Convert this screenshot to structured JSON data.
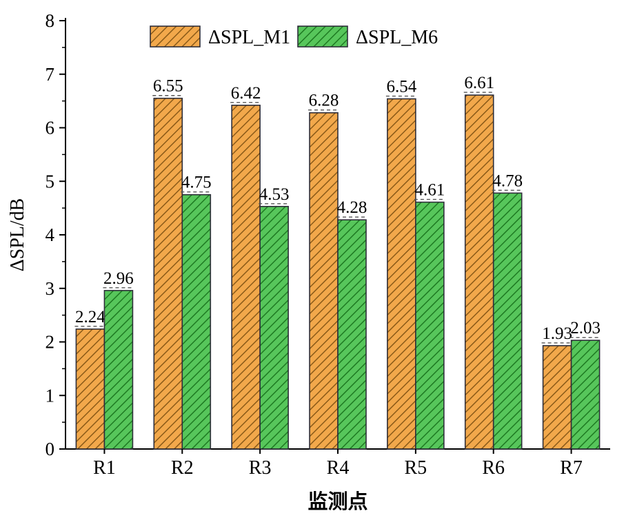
{
  "chart": {
    "background": "#ffffff",
    "axis_color": "#000000",
    "ylabel": "ΔSPL/dB",
    "xlabel": "监测点",
    "legend_entries": [
      {
        "label": "ΔSPL_M1",
        "fill": "#F2A84B",
        "hatch": "#8A5A18",
        "border": "#2e2e3a"
      },
      {
        "label": "ΔSPL_M6",
        "fill": "#57C65B",
        "hatch": "#1E7A22",
        "border": "#2e2e3a"
      }
    ],
    "cap_color": "#555555"
  },
  "chart_data": {
    "type": "bar",
    "title": "",
    "categories": [
      "R1",
      "R2",
      "R3",
      "R4",
      "R5",
      "R6",
      "R7"
    ],
    "series": [
      {
        "name": "ΔSPL_M1",
        "values": [
          2.24,
          6.55,
          6.42,
          6.28,
          6.54,
          6.61,
          1.93
        ]
      },
      {
        "name": "ΔSPL_M6",
        "values": [
          2.96,
          4.75,
          4.53,
          4.28,
          4.61,
          4.78,
          2.03
        ]
      }
    ],
    "value_labels": [
      [
        "2.24",
        "6.55",
        "6.42",
        "6.28",
        "6.54",
        "6.61",
        "1.93"
      ],
      [
        "2.96",
        "4.75",
        "4.53",
        "4.28",
        "4.61",
        "4.78",
        "2.03"
      ]
    ],
    "xlabel": "监测点",
    "ylabel": "ΔSPL/dB",
    "ylim": [
      0,
      8
    ],
    "ytick_step": 1,
    "yticks": [
      "0",
      "1",
      "2",
      "3",
      "4",
      "5",
      "6",
      "7",
      "8"
    ],
    "grid": false,
    "legend_position": "top-inside"
  }
}
